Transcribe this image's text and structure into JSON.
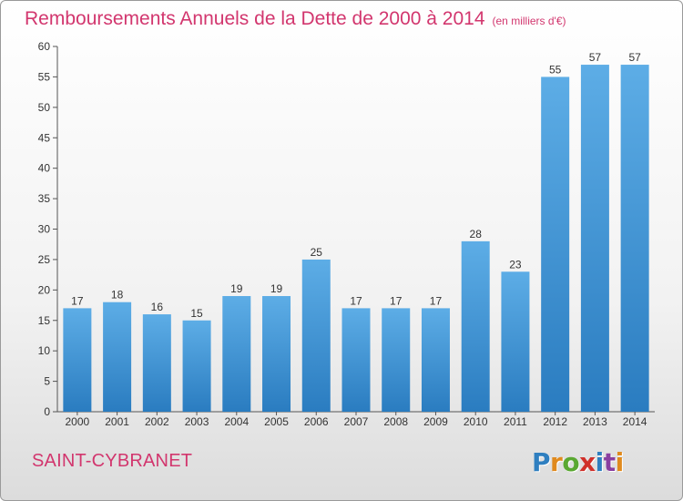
{
  "header": {
    "title": "Remboursements Annuels de la Dette de 2000 à 2014",
    "subtitle": "(en milliers d'€)"
  },
  "footer": {
    "city": "SAINT-CYBRANET",
    "logo_letters": [
      "P",
      "r",
      "o",
      "x",
      "i",
      "t",
      "i"
    ],
    "logo_colors": [
      "#2f7fc0",
      "#e08a1e",
      "#5aa832",
      "#d0302a",
      "#2f7fc0",
      "#8a3fa0",
      "#e08a1e"
    ]
  },
  "colors": {
    "bar_top": "#5dade6",
    "bar_bottom": "#2a7cc0",
    "title": "#d2366e"
  },
  "chart_data": {
    "type": "bar",
    "title": "Remboursements Annuels de la Dette de 2000 à 2014",
    "subtitle": "(en milliers d'€)",
    "categories": [
      "2000",
      "2001",
      "2002",
      "2003",
      "2004",
      "2005",
      "2006",
      "2007",
      "2008",
      "2009",
      "2010",
      "2011",
      "2012",
      "2013",
      "2014"
    ],
    "values": [
      17,
      18,
      16,
      15,
      19,
      19,
      25,
      17,
      17,
      17,
      28,
      23,
      55,
      57,
      57
    ],
    "ylim": [
      0,
      60
    ],
    "yticks": [
      0,
      5,
      10,
      15,
      20,
      25,
      30,
      35,
      40,
      45,
      50,
      55,
      60
    ],
    "grid": false,
    "data_labels": true
  }
}
